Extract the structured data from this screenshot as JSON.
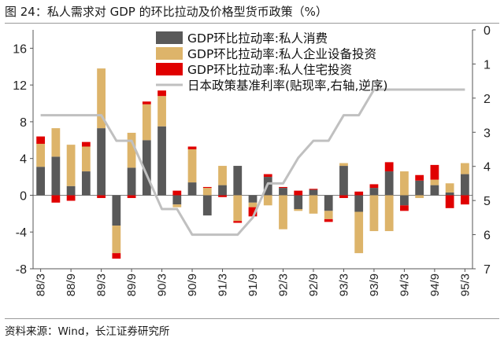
{
  "figure": {
    "title": "图 24：私人需求对 GDP 的环比拉动及价格型货币政策（%）",
    "source": "资料来源：Wind，长江证券研究所"
  },
  "chart_data": {
    "type": "bar",
    "stacked": true,
    "categories": [
      "88/3",
      "88/6",
      "88/9",
      "88/12",
      "89/3",
      "89/6",
      "89/9",
      "89/12",
      "90/3",
      "90/6",
      "90/9",
      "90/12",
      "91/3",
      "91/6",
      "91/9",
      "91/12",
      "92/3",
      "92/6",
      "92/9",
      "92/12",
      "93/3",
      "93/6",
      "93/9",
      "93/12",
      "94/3",
      "94/6",
      "94/9",
      "94/12",
      "95/3"
    ],
    "x_tick_labels": [
      "88/3",
      "88/9",
      "89/3",
      "89/9",
      "90/3",
      "90/9",
      "91/3",
      "91/9",
      "92/3",
      "92/9",
      "93/3",
      "93/9",
      "94/3",
      "94/9",
      "95/3"
    ],
    "series": [
      {
        "name": "GDP环比拉动率:私人消费",
        "color": "#595959",
        "axis": "left",
        "values": [
          3.1,
          4.2,
          1.0,
          2.6,
          7.3,
          -3.3,
          3.0,
          6.0,
          7.5,
          -1.0,
          1.4,
          -2.2,
          1.1,
          3.2,
          -0.8,
          2.0,
          0.8,
          -1.5,
          0.6,
          -1.7,
          3.2,
          -1.8,
          0.8,
          2.6,
          -1.1,
          1.6,
          1.1,
          0.3,
          2.3
        ]
      },
      {
        "name": "GDP环比拉动率:私人企业设备投资",
        "color": "#DDB46A",
        "axis": "left",
        "values": [
          2.5,
          3.1,
          4.5,
          2.7,
          6.5,
          -3.0,
          3.8,
          3.9,
          3.3,
          -0.3,
          3.6,
          0.8,
          2.1,
          -2.8,
          -0.5,
          -1.1,
          -3.7,
          -0.2,
          -2.0,
          -0.9,
          0.3,
          -4.5,
          -3.9,
          -3.9,
          2.6,
          -0.3,
          0.6,
          1.0,
          1.2
        ]
      },
      {
        "name": "GDP环比拉动率:私人住宅投资",
        "color": "#E00000",
        "axis": "left",
        "values": [
          0.8,
          -0.8,
          -0.6,
          0.5,
          -0.3,
          -0.6,
          -0.3,
          0.3,
          0.6,
          0.5,
          0.3,
          0.1,
          -0.2,
          -0.2,
          -1.0,
          0.3,
          0.1,
          0.5,
          0.1,
          -0.3,
          -0.3,
          0.4,
          0.4,
          1.0,
          -0.6,
          0.6,
          1.6,
          -1.4,
          -1.0
        ]
      },
      {
        "name": "日本政策基准利率(贴现率,右轴,逆序)",
        "color": "#C0C0C0",
        "axis": "right",
        "type": "line",
        "values": [
          2.5,
          2.5,
          2.5,
          2.5,
          2.5,
          3.25,
          3.25,
          4.25,
          5.25,
          5.25,
          6.0,
          6.0,
          6.0,
          6.0,
          5.5,
          4.5,
          4.5,
          3.75,
          3.25,
          3.25,
          2.5,
          2.5,
          1.75,
          1.75,
          1.75,
          1.75,
          1.75,
          1.75,
          1.75
        ]
      }
    ],
    "left_axis": {
      "ylim": [
        -8,
        18
      ],
      "ticks": [
        -8,
        -4,
        0,
        4,
        8,
        12,
        16
      ]
    },
    "right_axis": {
      "ylim": [
        0,
        7
      ],
      "inverted": true,
      "ticks": [
        0,
        1,
        2,
        3,
        4,
        5,
        6,
        7
      ]
    },
    "legend_position": "top"
  }
}
